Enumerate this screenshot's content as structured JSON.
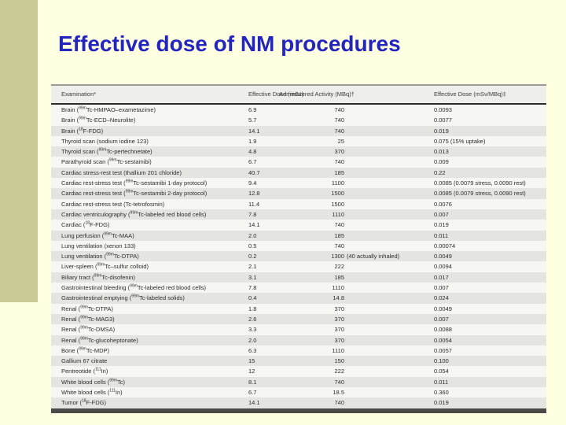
{
  "slide": {
    "title": "Effective dose of NM procedures",
    "colors": {
      "background": "#FFFFE2",
      "accent_bar": "#C9CA95",
      "title_text": "#2424BE",
      "table_bottom_rule": "#4A4A48"
    }
  },
  "table": {
    "columns": [
      "Examination*",
      "Effective Dose (mSv)",
      "Administered Activity (MBq)†",
      "Effective Dose (mSv/MBq)‡"
    ],
    "rows": [
      {
        "exam": "Brain (^99m^Tc-HMPAO–exametazime)",
        "dose": "6.9",
        "activity": "740",
        "dose_per_mbq": "0.0093"
      },
      {
        "exam": "Brain (^99m^Tc-ECD–Neurolite)",
        "dose": "5.7",
        "activity": "740",
        "dose_per_mbq": "0.0077"
      },
      {
        "exam": "Brain (^18^F-FDG)",
        "dose": "14.1",
        "activity": "740",
        "dose_per_mbq": "0.019"
      },
      {
        "exam": "Thyroid scan (sodium iodine 123)",
        "dose": "1.9",
        "activity": "25",
        "dose_per_mbq": "0.075 (15% uptake)"
      },
      {
        "exam": "Thyroid scan (^99m^Tc-pertechnetate)",
        "dose": "4.8",
        "activity": "370",
        "dose_per_mbq": "0.013"
      },
      {
        "exam": "Parathyroid scan (^99m^Tc-sestamibi)",
        "dose": "6.7",
        "activity": "740",
        "dose_per_mbq": "0.009"
      },
      {
        "exam": "Cardiac stress-rest test (thallium 201 chloride)",
        "dose": "40.7",
        "activity": "185",
        "dose_per_mbq": "0.22"
      },
      {
        "exam": "Cardiac rest-stress test (^99m^Tc-sestamibi 1-day protocol)",
        "dose": "9.4",
        "activity": "1100",
        "dose_per_mbq": "0.0085 (0.0079 stress, 0.0090 rest)"
      },
      {
        "exam": "Cardiac rest-stress test (^99m^Tc-sestamibi 2-day protocol)",
        "dose": "12.8",
        "activity": "1500",
        "dose_per_mbq": "0.0085 (0.0079 stress, 0.0090 rest)"
      },
      {
        "exam": "Cardiac rest-stress test (Tc-tetrofosmin)",
        "dose": "11.4",
        "activity": "1500",
        "dose_per_mbq": "0.0076"
      },
      {
        "exam": "Cardiac ventriculography (^99m^Tc-labeled red blood cells)",
        "dose": "7.8",
        "activity": "1110",
        "dose_per_mbq": "0.007"
      },
      {
        "exam": "Cardiac (^18^F-FDG)",
        "dose": "14.1",
        "activity": "740",
        "dose_per_mbq": "0.019"
      },
      {
        "exam": "Lung perfusion (^99m^Tc-MAA)",
        "dose": "2.0",
        "activity": "185",
        "dose_per_mbq": "0.011"
      },
      {
        "exam": "Lung ventilation (xenon 133)",
        "dose": "0.5",
        "activity": "740",
        "dose_per_mbq": "0.00074"
      },
      {
        "exam": "Lung ventilation (^99m^Tc-DTPA)",
        "dose": "0.2",
        "activity": "1300 (40 actually inhaled)",
        "dose_per_mbq": "0.0049"
      },
      {
        "exam": "Liver-spleen (^99m^Tc–sulfur colloid)",
        "dose": "2.1",
        "activity": "222",
        "dose_per_mbq": "0.0094"
      },
      {
        "exam": "Biliary tract (^99m^Tc-disofenin)",
        "dose": "3.1",
        "activity": "185",
        "dose_per_mbq": "0.017"
      },
      {
        "exam": "Gastrointestinal bleeding (^99m^Tc-labeled red blood cells)",
        "dose": "7.8",
        "activity": "1110",
        "dose_per_mbq": "0.007"
      },
      {
        "exam": "Gastrointestinal emptying (^99m^Tc-labeled solids)",
        "dose": "0.4",
        "activity": "14.8",
        "dose_per_mbq": "0.024"
      },
      {
        "exam": "Renal (^99m^Tc-DTPA)",
        "dose": "1.8",
        "activity": "370",
        "dose_per_mbq": "0.0049"
      },
      {
        "exam": "Renal (^99m^Tc-MAG3)",
        "dose": "2.6",
        "activity": "370",
        "dose_per_mbq": "0.007"
      },
      {
        "exam": "Renal (^99m^Tc-DMSA)",
        "dose": "3.3",
        "activity": "370",
        "dose_per_mbq": "0.0088"
      },
      {
        "exam": "Renal (^99m^Tc-glucoheptonate)",
        "dose": "2.0",
        "activity": "370",
        "dose_per_mbq": "0.0054"
      },
      {
        "exam": "Bone (^99m^Tc-MDP)",
        "dose": "6.3",
        "activity": "1110",
        "dose_per_mbq": "0.0057"
      },
      {
        "exam": "Gallium 67 citrate",
        "dose": "15",
        "activity": "150",
        "dose_per_mbq": "0.100"
      },
      {
        "exam": "Pentreotide (^111^In)",
        "dose": "12",
        "activity": "222",
        "dose_per_mbq": "0.054"
      },
      {
        "exam": "White blood cells (^99m^Tc)",
        "dose": "8.1",
        "activity": "740",
        "dose_per_mbq": "0.011"
      },
      {
        "exam": "White blood cells (^111^In)",
        "dose": "6.7",
        "activity": "18.5",
        "dose_per_mbq": "0.360"
      },
      {
        "exam": "Tumor (^18^F-FDG)",
        "dose": "14.1",
        "activity": "740",
        "dose_per_mbq": "0.019"
      }
    ]
  }
}
